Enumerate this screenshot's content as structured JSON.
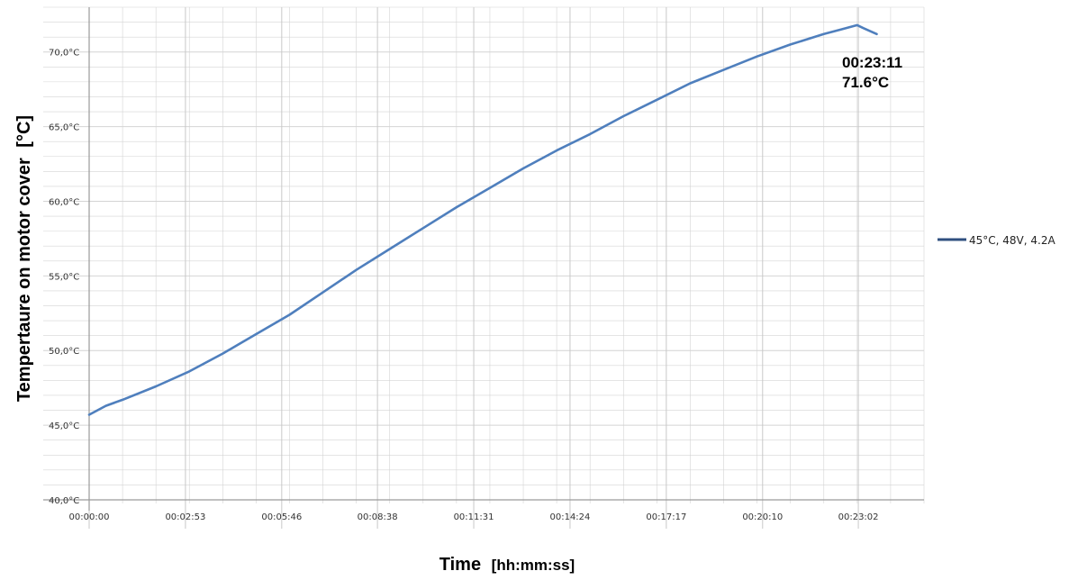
{
  "chart_data": {
    "type": "line",
    "xlabel": "Time",
    "xunit": "[hh:mm:ss]",
    "ylabel": "Tempertaure on motor cover",
    "yunit": "[°C]",
    "ylim": [
      40,
      73
    ],
    "xlim": [
      "00:00:00",
      "00:25:00"
    ],
    "x_ticks": [
      "00:00:00",
      "00:02:53",
      "00:05:46",
      "00:08:38",
      "00:11:31",
      "00:14:24",
      "00:17:17",
      "00:20:10",
      "00:23:02"
    ],
    "y_ticks": [
      "40,0°C",
      "45,0°C",
      "50,0°C",
      "55,0°C",
      "60,0°C",
      "65,0°C",
      "70,0°C"
    ],
    "grid": true,
    "legend_position": "right",
    "colors": {
      "series": "#4f7fbd",
      "legend_line": "#2f4f7f",
      "grid": "#d4d4d4",
      "axis": "#9a9a9a"
    },
    "series": [
      {
        "name": "45°C, 48V, 4.2A",
        "x": [
          "00:00:00",
          "00:00:30",
          "00:01:00",
          "00:02:00",
          "00:03:00",
          "00:04:00",
          "00:05:00",
          "00:06:00",
          "00:07:00",
          "00:08:00",
          "00:09:00",
          "00:10:00",
          "00:11:00",
          "00:12:00",
          "00:13:00",
          "00:14:00",
          "00:15:00",
          "00:16:00",
          "00:17:00",
          "00:18:00",
          "00:19:00",
          "00:20:00",
          "00:21:00",
          "00:22:00",
          "00:22:30",
          "00:23:00",
          "00:23:11",
          "00:23:35"
        ],
        "y": [
          45.7,
          46.3,
          46.7,
          47.6,
          48.6,
          49.8,
          51.1,
          52.4,
          53.9,
          55.4,
          56.8,
          58.2,
          59.6,
          60.9,
          62.2,
          63.4,
          64.5,
          65.7,
          66.8,
          67.9,
          68.8,
          69.7,
          70.5,
          71.2,
          71.5,
          71.8,
          71.6,
          71.2
        ]
      }
    ],
    "annotation": {
      "time": "00:23:11",
      "value": "71.6°C"
    }
  }
}
